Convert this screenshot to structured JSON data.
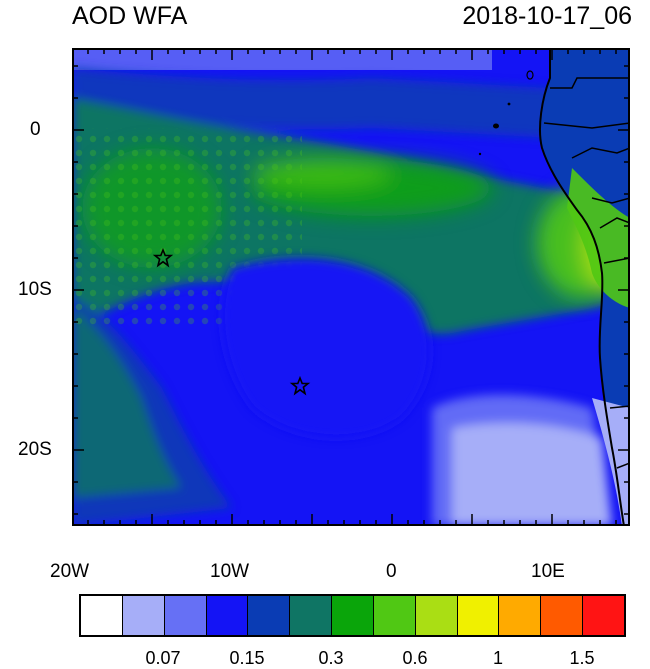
{
  "header": {
    "title_left": "AOD WFA",
    "title_right": "2018-10-17_06"
  },
  "map": {
    "x_ticks": [
      "20W",
      "10W",
      "0",
      "10E"
    ],
    "y_ticks": [
      "0",
      "10S",
      "20S"
    ],
    "markers": [
      {
        "name": "star-marker-north",
        "lon": -14.3,
        "lat": -8.0
      },
      {
        "name": "star-marker-south",
        "lon": -5.7,
        "lat": -16.0
      }
    ]
  },
  "colorbar": {
    "colors": [
      "#ffffff",
      "#a6aef8",
      "#6670f5",
      "#1414f5",
      "#0a3cb4",
      "#0f7564",
      "#0aa50a",
      "#50c814",
      "#aade14",
      "#f0f000",
      "#ffaa00",
      "#ff5a00",
      "#ff1414"
    ],
    "tick_labels": [
      "0.07",
      "0.15",
      "0.3",
      "0.6",
      "1",
      "1.5"
    ]
  }
}
